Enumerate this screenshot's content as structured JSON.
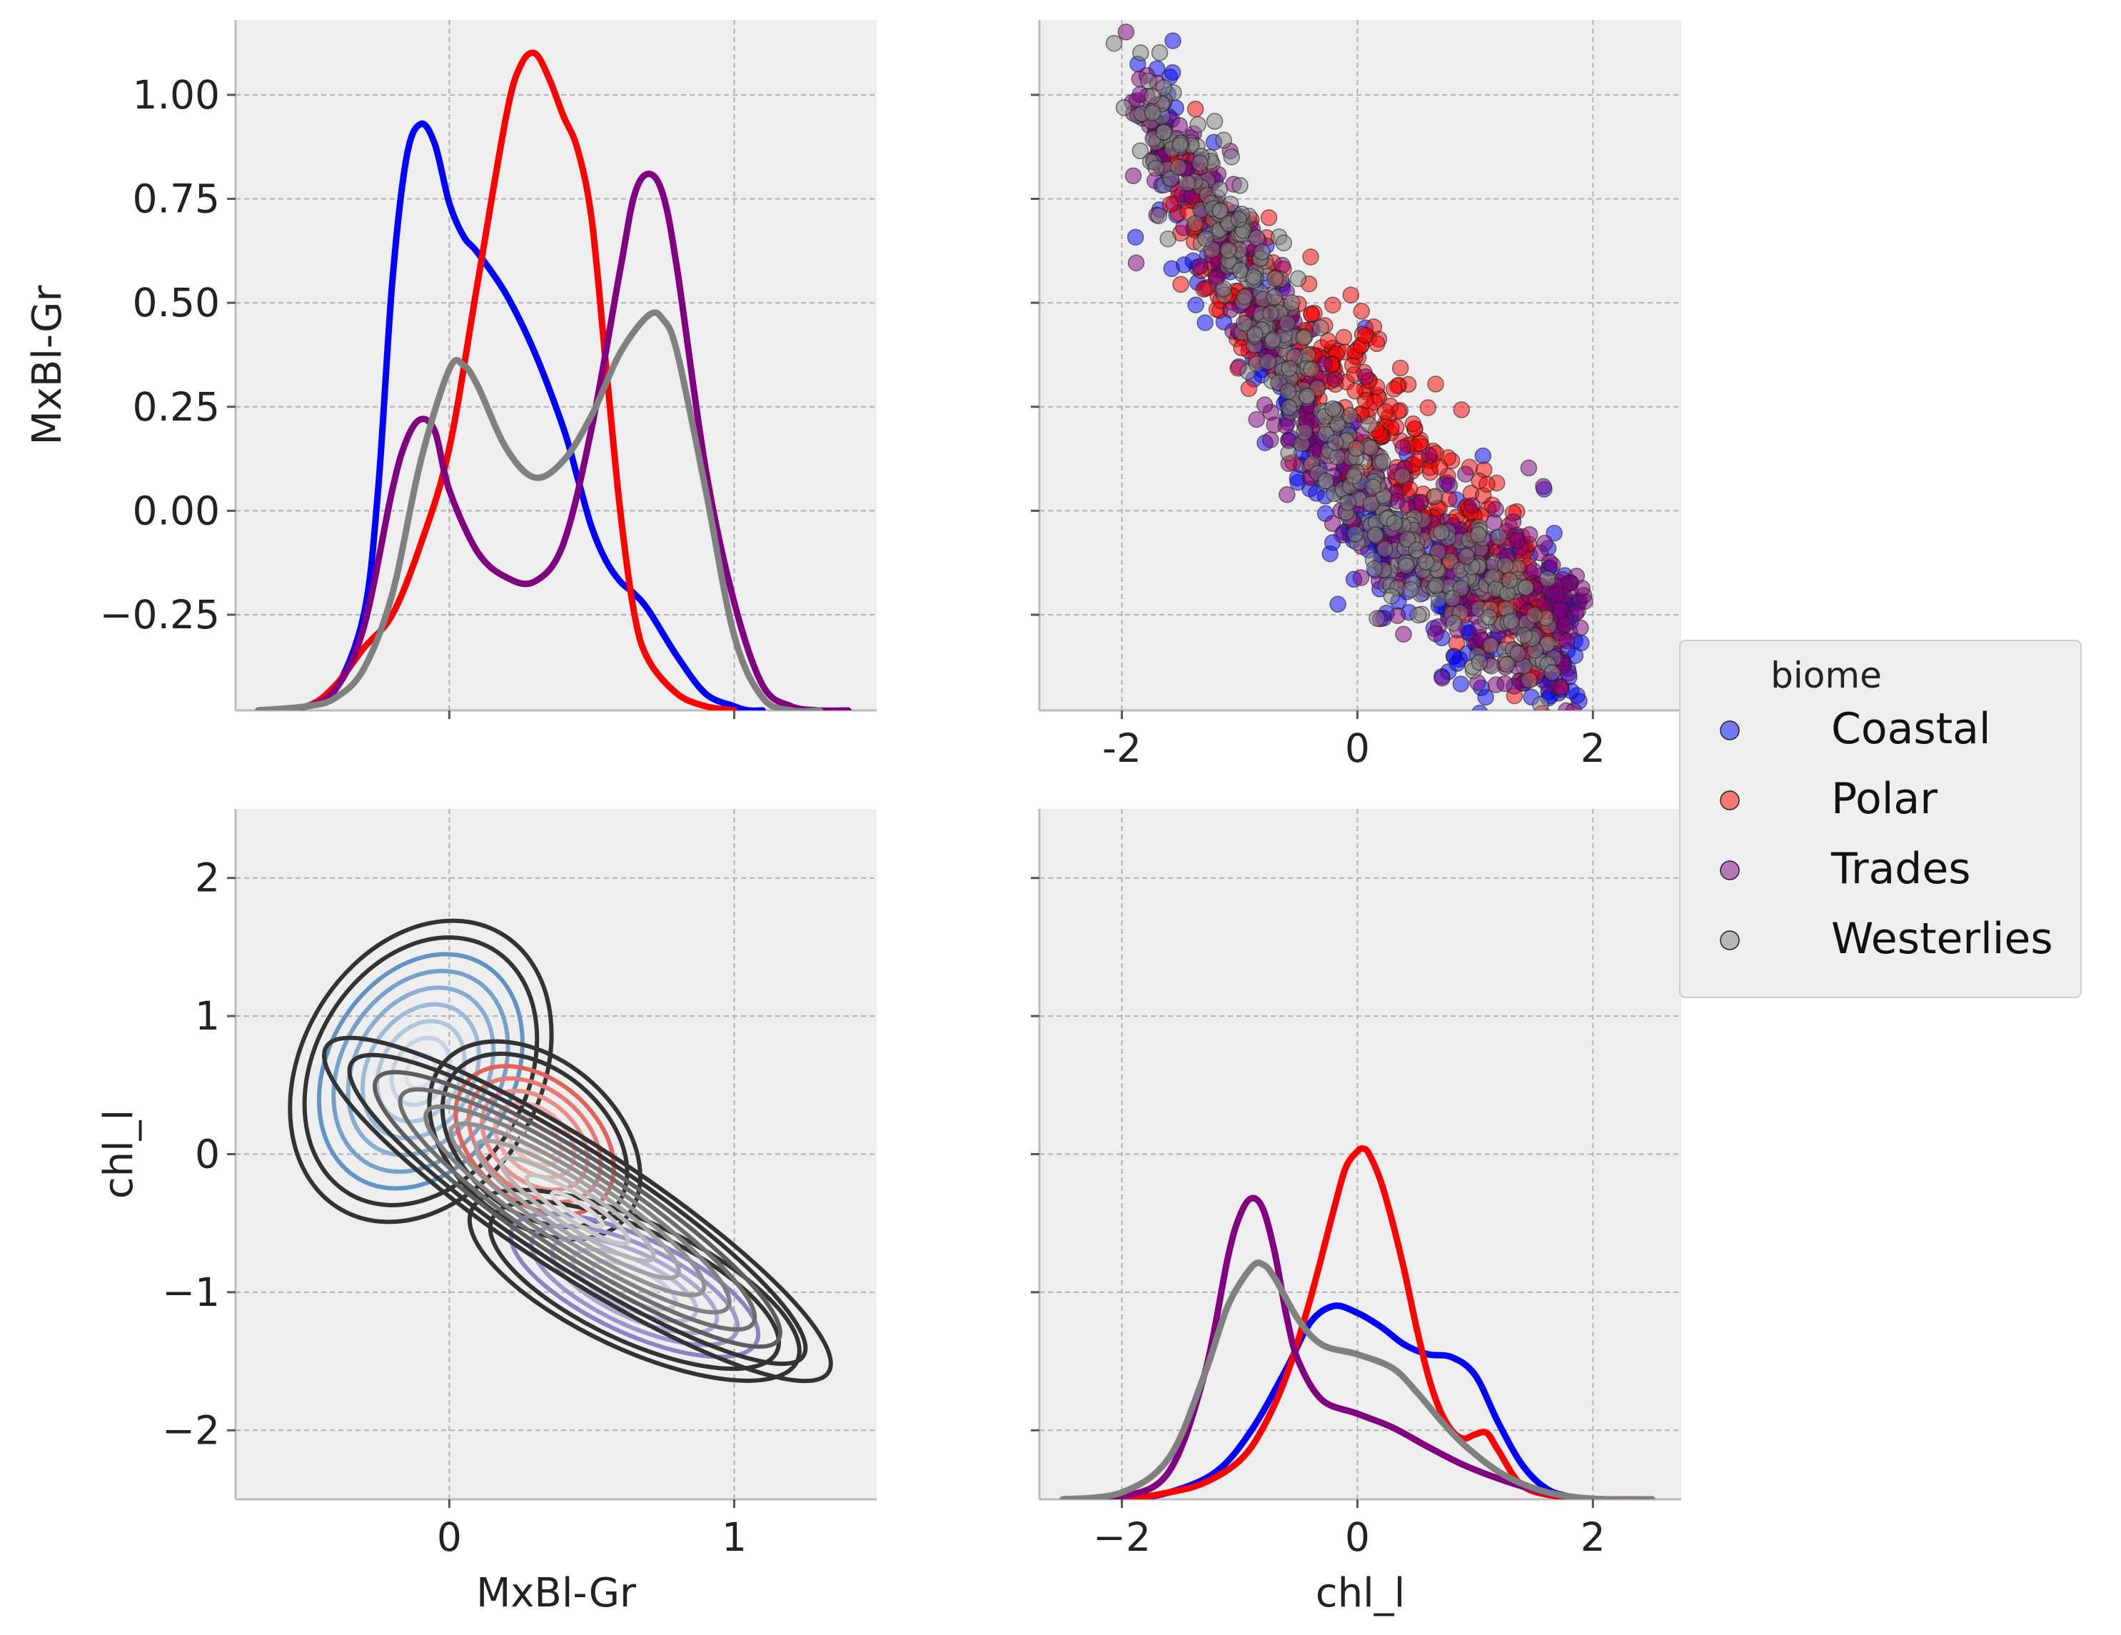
{
  "chart_data": [
    {
      "type": "line",
      "panel": "top-left",
      "plot_kind": "kde",
      "xlabel": "",
      "ylabel": "MxBl-Gr",
      "xlim": [
        -0.75,
        1.5
      ],
      "ylim": [
        -0.48,
        1.18
      ],
      "x_ticks": [
        0,
        1
      ],
      "y_ticks": [
        -0.25,
        0.0,
        0.25,
        0.5,
        0.75,
        1.0
      ],
      "y_tick_labels": [
        "−0.25",
        "0.00",
        "0.25",
        "0.50",
        "0.75",
        "1.00"
      ],
      "series": [
        {
          "name": "Coastal",
          "color": "#0000ff",
          "x": [
            -0.67,
            -0.5,
            -0.4,
            -0.3,
            -0.25,
            -0.2,
            -0.15,
            -0.1,
            -0.05,
            0,
            0.05,
            0.1,
            0.2,
            0.3,
            0.4,
            0.45,
            0.5,
            0.55,
            0.6,
            0.65,
            0.7,
            0.8,
            0.9,
            1.0,
            1.05,
            1.1
          ],
          "y": [
            -0.48,
            -0.47,
            -0.43,
            -0.25,
            0.05,
            0.55,
            0.85,
            0.93,
            0.88,
            0.74,
            0.66,
            0.62,
            0.52,
            0.38,
            0.2,
            0.08,
            -0.04,
            -0.12,
            -0.17,
            -0.2,
            -0.24,
            -0.35,
            -0.44,
            -0.47,
            -0.48,
            -0.48
          ]
        },
        {
          "name": "Polar",
          "color": "#ff0000",
          "x": [
            -0.67,
            -0.5,
            -0.4,
            -0.3,
            -0.2,
            -0.1,
            0,
            0.1,
            0.2,
            0.25,
            0.3,
            0.35,
            0.4,
            0.45,
            0.5,
            0.55,
            0.6,
            0.65,
            0.7,
            0.8,
            0.9,
            1.0
          ],
          "y": [
            -0.48,
            -0.47,
            -0.42,
            -0.33,
            -0.25,
            -0.08,
            0.15,
            0.55,
            0.95,
            1.07,
            1.1,
            1.04,
            0.95,
            0.87,
            0.7,
            0.35,
            0.0,
            -0.25,
            -0.36,
            -0.44,
            -0.47,
            -0.48
          ]
        },
        {
          "name": "Trades",
          "color": "#800080",
          "x": [
            -0.67,
            -0.5,
            -0.4,
            -0.3,
            -0.2,
            -0.15,
            -0.1,
            -0.05,
            0,
            0.1,
            0.2,
            0.3,
            0.4,
            0.5,
            0.6,
            0.65,
            0.7,
            0.75,
            0.8,
            0.9,
            1.0,
            1.1,
            1.2,
            1.3,
            1.4
          ],
          "y": [
            -0.48,
            -0.47,
            -0.43,
            -0.28,
            0.05,
            0.17,
            0.22,
            0.19,
            0.05,
            -0.1,
            -0.16,
            -0.17,
            -0.08,
            0.2,
            0.58,
            0.76,
            0.81,
            0.76,
            0.58,
            0.1,
            -0.22,
            -0.42,
            -0.47,
            -0.48,
            -0.48
          ]
        },
        {
          "name": "Westerlies",
          "color": "#808080",
          "x": [
            -0.67,
            -0.5,
            -0.4,
            -0.3,
            -0.2,
            -0.1,
            0,
            0.05,
            0.1,
            0.2,
            0.3,
            0.4,
            0.5,
            0.6,
            0.7,
            0.75,
            0.8,
            0.9,
            1.0,
            1.1,
            1.2,
            1.3
          ],
          "y": [
            -0.48,
            -0.47,
            -0.45,
            -0.38,
            -0.2,
            0.12,
            0.34,
            0.35,
            0.3,
            0.15,
            0.08,
            0.12,
            0.23,
            0.38,
            0.47,
            0.46,
            0.38,
            0.05,
            -0.3,
            -0.45,
            -0.48,
            -0.48
          ]
        }
      ]
    },
    {
      "type": "scatter",
      "panel": "top-right",
      "xlabel": "",
      "ylabel": "",
      "xlim": [
        -2.7,
        2.75
      ],
      "ylim": [
        -0.48,
        1.18
      ],
      "x_ticks": [
        -2,
        0,
        2
      ],
      "y_ticks": [
        -0.25,
        0.0,
        0.25,
        0.5,
        0.75,
        1.0
      ],
      "series": [
        {
          "name": "Coastal",
          "color": "#0000ff",
          "center_line": [
            [
              -1.8,
              0.95
            ],
            [
              -1.2,
              0.7
            ],
            [
              -0.7,
              0.35
            ],
            [
              0,
              0.0
            ],
            [
              0.8,
              -0.2
            ],
            [
              1.9,
              -0.35
            ]
          ],
          "spread_y": 0.12,
          "n": 350
        },
        {
          "name": "Polar",
          "color": "#ff0000",
          "center_line": [
            [
              -1.6,
              0.8
            ],
            [
              -1.0,
              0.55
            ],
            [
              -0.5,
              0.38
            ],
            [
              0,
              0.28
            ],
            [
              0.8,
              0.0
            ],
            [
              1.6,
              -0.3
            ]
          ],
          "spread_y": 0.11,
          "n": 450
        },
        {
          "name": "Trades",
          "color": "#800080",
          "center_line": [
            [
              -1.9,
              0.98
            ],
            [
              -1.3,
              0.75
            ],
            [
              -0.7,
              0.35
            ],
            [
              0,
              0.0
            ],
            [
              0.9,
              -0.15
            ],
            [
              1.9,
              -0.28
            ]
          ],
          "spread_y": 0.1,
          "n": 450
        },
        {
          "name": "Westerlies",
          "color": "#808080",
          "center_line": [
            [
              -1.9,
              0.98
            ],
            [
              -1.3,
              0.8
            ],
            [
              -0.8,
              0.5
            ],
            [
              -0.2,
              0.15
            ],
            [
              0.6,
              -0.15
            ],
            [
              1.6,
              -0.25
            ]
          ],
          "spread_y": 0.09,
          "n": 400
        }
      ]
    },
    {
      "type": "contour",
      "panel": "bottom-left",
      "xlabel": "MxBl-Gr",
      "ylabel": "chl_l",
      "xlim": [
        -0.75,
        1.5
      ],
      "ylim": [
        -2.5,
        2.5
      ],
      "x_ticks": [
        0,
        1
      ],
      "y_ticks": [
        -2,
        -1,
        0,
        1,
        2
      ],
      "y_tick_labels": [
        "−2",
        "−1",
        "0",
        "1",
        "2"
      ],
      "components": [
        {
          "name": "Coastal",
          "color": "#3a7ab8",
          "mean": [
            -0.1,
            0.6
          ],
          "sd": [
            0.2,
            0.55
          ],
          "rotation_deg": 30,
          "levels": 9
        },
        {
          "name": "Polar",
          "color": "#e0322a",
          "mean": [
            0.3,
            0.1
          ],
          "sd": [
            0.2,
            0.28
          ],
          "rotation_deg": 40,
          "levels": 8
        },
        {
          "name": "Trades",
          "color": "#6a5fb5",
          "mean": [
            0.65,
            -0.95
          ],
          "sd": [
            0.3,
            0.22
          ],
          "rotation_deg": 25,
          "levels": 8
        },
        {
          "name": "Westerlies",
          "color": "#3a3a3a",
          "mean": [
            0.45,
            -0.4
          ],
          "sd": [
            0.5,
            0.22
          ],
          "rotation_deg": 33,
          "levels": 10
        }
      ]
    },
    {
      "type": "line",
      "panel": "bottom-right",
      "plot_kind": "kde",
      "xlabel": "chl_l",
      "ylabel": "",
      "xlim": [
        -2.7,
        2.75
      ],
      "ylim": [
        -2.5,
        2.5
      ],
      "x_ticks": [
        -2,
        0,
        2
      ],
      "x_tick_labels": [
        "−2",
        "0",
        "2"
      ],
      "y_ticks": [
        -2,
        -1,
        0,
        1,
        2
      ],
      "series": [
        {
          "name": "Coastal",
          "color": "#0000ff",
          "x": [
            -2.5,
            -2,
            -1.6,
            -1.2,
            -0.9,
            -0.6,
            -0.4,
            -0.2,
            0,
            0.2,
            0.4,
            0.6,
            0.8,
            1.0,
            1.2,
            1.4,
            1.6,
            1.8,
            2.0,
            2.2,
            2.5
          ],
          "y": [
            -2.5,
            -2.5,
            -2.45,
            -2.3,
            -2.0,
            -1.55,
            -1.22,
            -1.1,
            -1.15,
            -1.25,
            -1.38,
            -1.45,
            -1.47,
            -1.6,
            -1.95,
            -2.25,
            -2.42,
            -2.48,
            -2.5,
            -2.5,
            -2.5
          ]
        },
        {
          "name": "Polar",
          "color": "#ff0000",
          "x": [
            -2.5,
            -2,
            -1.6,
            -1.3,
            -1.0,
            -0.8,
            -0.6,
            -0.4,
            -0.2,
            -0.1,
            0,
            0.05,
            0.1,
            0.2,
            0.3,
            0.4,
            0.5,
            0.6,
            0.7,
            0.8,
            0.9,
            1.0,
            1.1,
            1.2,
            1.4,
            1.7,
            2.0,
            2.5
          ],
          "y": [
            -2.5,
            -2.5,
            -2.45,
            -2.38,
            -2.22,
            -1.98,
            -1.6,
            -1.05,
            -0.4,
            -0.1,
            0.02,
            0.04,
            0.0,
            -0.2,
            -0.5,
            -0.85,
            -1.25,
            -1.6,
            -1.85,
            -2.0,
            -2.06,
            -2.03,
            -2.02,
            -2.15,
            -2.4,
            -2.48,
            -2.5,
            -2.5
          ]
        },
        {
          "name": "Trades",
          "color": "#800080",
          "x": [
            -2.5,
            -2,
            -1.6,
            -1.3,
            -1.1,
            -1.0,
            -0.9,
            -0.8,
            -0.7,
            -0.6,
            -0.5,
            -0.3,
            0,
            0.3,
            0.6,
            0.9,
            1.2,
            1.5,
            1.8,
            2.1,
            2.5
          ],
          "y": [
            -2.5,
            -2.48,
            -2.3,
            -1.6,
            -0.75,
            -0.45,
            -0.32,
            -0.4,
            -0.72,
            -1.18,
            -1.5,
            -1.78,
            -1.88,
            -1.98,
            -2.12,
            -2.25,
            -2.35,
            -2.43,
            -2.48,
            -2.5,
            -2.5
          ]
        },
        {
          "name": "Westerlies",
          "color": "#808080",
          "x": [
            -2.5,
            -2,
            -1.6,
            -1.3,
            -1.1,
            -0.9,
            -0.8,
            -0.7,
            -0.5,
            -0.3,
            0,
            0.3,
            0.5,
            0.7,
            0.9,
            1.2,
            1.5,
            1.8,
            2.1,
            2.5
          ],
          "y": [
            -2.5,
            -2.45,
            -2.2,
            -1.6,
            -1.1,
            -0.82,
            -0.8,
            -0.9,
            -1.2,
            -1.38,
            -1.45,
            -1.55,
            -1.72,
            -1.92,
            -2.1,
            -2.3,
            -2.42,
            -2.48,
            -2.5,
            -2.5
          ]
        }
      ]
    }
  ],
  "legend": {
    "title": "biome",
    "placement": "right",
    "entries": [
      {
        "label": "Coastal",
        "color": "#0000ff"
      },
      {
        "label": "Polar",
        "color": "#ff0000"
      },
      {
        "label": "Trades",
        "color": "#800080"
      },
      {
        "label": "Westerlies",
        "color": "#808080"
      }
    ]
  },
  "style": {
    "panel_background": "#eeeeee",
    "grid": true,
    "grid_style": "dashed"
  }
}
